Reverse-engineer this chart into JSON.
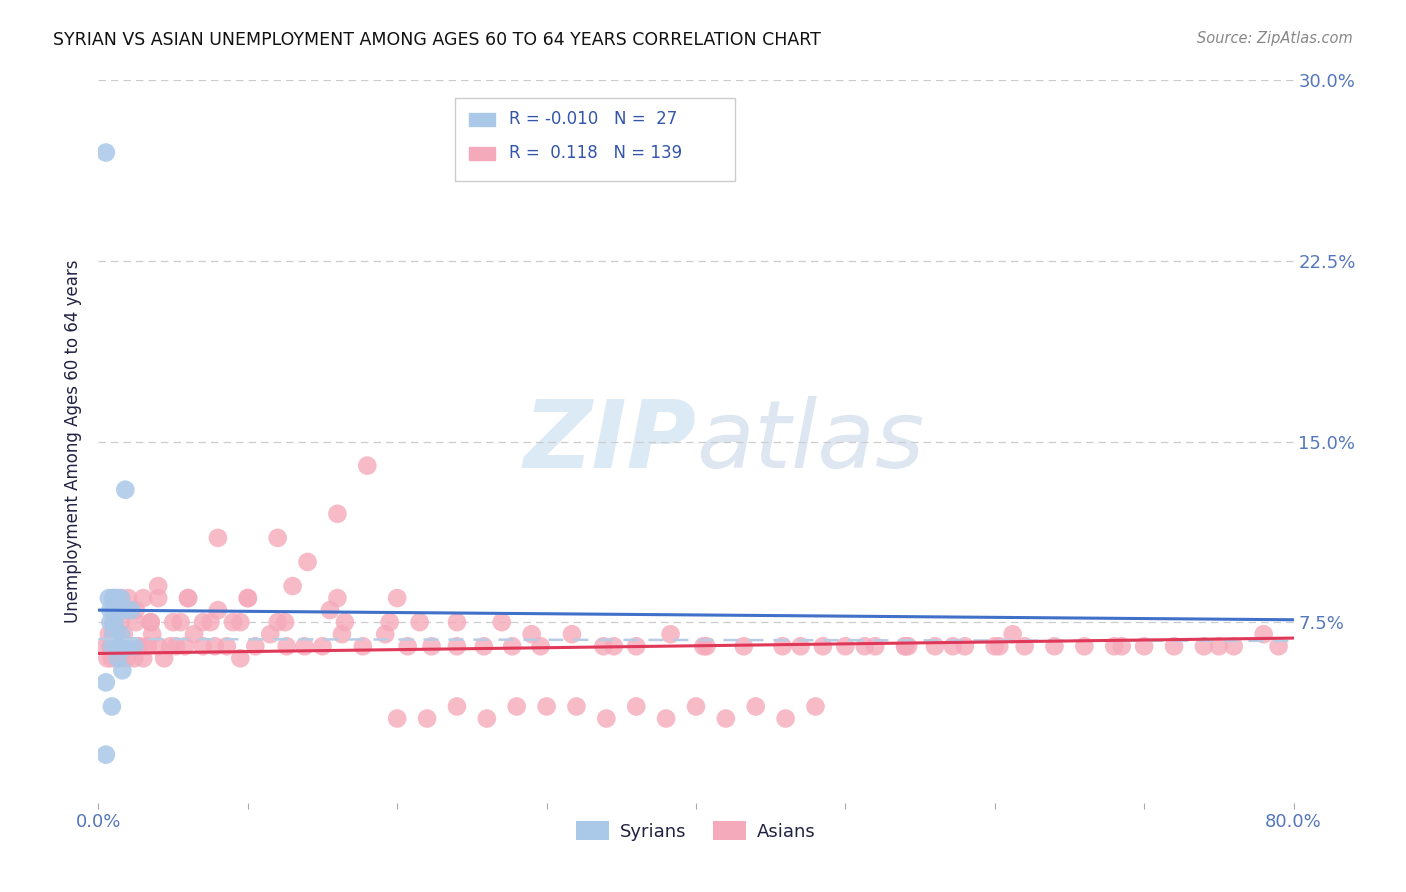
{
  "title": "SYRIAN VS ASIAN UNEMPLOYMENT AMONG AGES 60 TO 64 YEARS CORRELATION CHART",
  "source": "Source: ZipAtlas.com",
  "ylabel": "Unemployment Among Ages 60 to 64 years",
  "xlim": [
    0.0,
    0.8
  ],
  "ylim": [
    0.0,
    0.3
  ],
  "yticks": [
    0.075,
    0.15,
    0.225,
    0.3
  ],
  "ytick_labels": [
    "7.5%",
    "15.0%",
    "22.5%",
    "30.0%"
  ],
  "xtick_labels": [
    "0.0%",
    "",
    "",
    "",
    "",
    "",
    "",
    "",
    "80.0%"
  ],
  "legend_r_syrian": "-0.010",
  "legend_n_syrian": "27",
  "legend_r_asian": "0.118",
  "legend_n_asian": "139",
  "syrian_color": "#aac8e8",
  "asian_color": "#f5aabb",
  "syrian_line_color": "#4070c8",
  "asian_line_color": "#e03858",
  "dashed_line_color": "#b8cce4",
  "watermark_color": "#d8e8f4",
  "title_color": "#111111",
  "source_color": "#888888",
  "axis_label_color": "#222244",
  "tick_color": "#5577bb",
  "grid_color": "#cccccc",
  "legend_border_color": "#cccccc",
  "legend_text_color": "#3355aa",
  "watermark": "ZIPatlas",
  "syrian_x": [
    0.005,
    0.005,
    0.005,
    0.007,
    0.008,
    0.008,
    0.009,
    0.009,
    0.01,
    0.01,
    0.01,
    0.011,
    0.012,
    0.012,
    0.013,
    0.013,
    0.014,
    0.015,
    0.015,
    0.016,
    0.016,
    0.017,
    0.018,
    0.019,
    0.02,
    0.022,
    0.024
  ],
  "syrian_y": [
    0.27,
    0.05,
    0.02,
    0.085,
    0.08,
    0.075,
    0.065,
    0.04,
    0.085,
    0.08,
    0.07,
    0.075,
    0.085,
    0.08,
    0.065,
    0.06,
    0.08,
    0.085,
    0.07,
    0.065,
    0.055,
    0.08,
    0.13,
    0.065,
    0.065,
    0.08,
    0.065
  ],
  "asian_x": [
    0.005,
    0.006,
    0.007,
    0.008,
    0.009,
    0.01,
    0.01,
    0.011,
    0.012,
    0.013,
    0.014,
    0.015,
    0.016,
    0.017,
    0.018,
    0.019,
    0.02,
    0.022,
    0.024,
    0.026,
    0.028,
    0.03,
    0.033,
    0.036,
    0.04,
    0.044,
    0.048,
    0.052,
    0.058,
    0.064,
    0.07,
    0.078,
    0.086,
    0.095,
    0.105,
    0.115,
    0.126,
    0.138,
    0.15,
    0.163,
    0.177,
    0.192,
    0.207,
    0.223,
    0.24,
    0.258,
    0.277,
    0.296,
    0.317,
    0.338,
    0.36,
    0.383,
    0.407,
    0.432,
    0.458,
    0.485,
    0.513,
    0.542,
    0.572,
    0.603,
    0.01,
    0.02,
    0.03,
    0.04,
    0.06,
    0.08,
    0.1,
    0.13,
    0.16,
    0.2,
    0.015,
    0.025,
    0.035,
    0.05,
    0.07,
    0.09,
    0.12,
    0.155,
    0.195,
    0.24,
    0.29,
    0.345,
    0.405,
    0.47,
    0.54,
    0.612,
    0.685,
    0.75,
    0.79,
    0.78,
    0.76,
    0.74,
    0.72,
    0.7,
    0.68,
    0.66,
    0.64,
    0.62,
    0.6,
    0.58,
    0.56,
    0.54,
    0.52,
    0.5,
    0.48,
    0.46,
    0.44,
    0.42,
    0.4,
    0.38,
    0.36,
    0.34,
    0.32,
    0.3,
    0.28,
    0.26,
    0.24,
    0.22,
    0.2,
    0.18,
    0.16,
    0.14,
    0.12,
    0.1,
    0.08,
    0.06,
    0.04,
    0.02,
    0.01,
    0.015,
    0.025,
    0.035,
    0.055,
    0.075,
    0.095,
    0.125,
    0.165,
    0.215,
    0.27
  ],
  "asian_y": [
    0.065,
    0.06,
    0.07,
    0.065,
    0.06,
    0.065,
    0.07,
    0.065,
    0.07,
    0.065,
    0.06,
    0.065,
    0.065,
    0.07,
    0.065,
    0.06,
    0.065,
    0.065,
    0.06,
    0.065,
    0.065,
    0.06,
    0.065,
    0.07,
    0.065,
    0.06,
    0.065,
    0.065,
    0.065,
    0.07,
    0.065,
    0.065,
    0.065,
    0.06,
    0.065,
    0.07,
    0.065,
    0.065,
    0.065,
    0.07,
    0.065,
    0.07,
    0.065,
    0.065,
    0.065,
    0.065,
    0.065,
    0.065,
    0.07,
    0.065,
    0.065,
    0.07,
    0.065,
    0.065,
    0.065,
    0.065,
    0.065,
    0.065,
    0.065,
    0.065,
    0.075,
    0.08,
    0.085,
    0.09,
    0.085,
    0.08,
    0.085,
    0.09,
    0.085,
    0.085,
    0.075,
    0.075,
    0.075,
    0.075,
    0.075,
    0.075,
    0.075,
    0.08,
    0.075,
    0.075,
    0.07,
    0.065,
    0.065,
    0.065,
    0.065,
    0.07,
    0.065,
    0.065,
    0.065,
    0.07,
    0.065,
    0.065,
    0.065,
    0.065,
    0.065,
    0.065,
    0.065,
    0.065,
    0.065,
    0.065,
    0.065,
    0.065,
    0.065,
    0.065,
    0.04,
    0.035,
    0.04,
    0.035,
    0.04,
    0.035,
    0.04,
    0.035,
    0.04,
    0.04,
    0.04,
    0.035,
    0.04,
    0.035,
    0.035,
    0.14,
    0.12,
    0.1,
    0.11,
    0.085,
    0.11,
    0.085,
    0.085,
    0.085,
    0.085,
    0.085,
    0.08,
    0.075,
    0.075,
    0.075,
    0.075,
    0.075,
    0.075,
    0.075,
    0.075
  ]
}
